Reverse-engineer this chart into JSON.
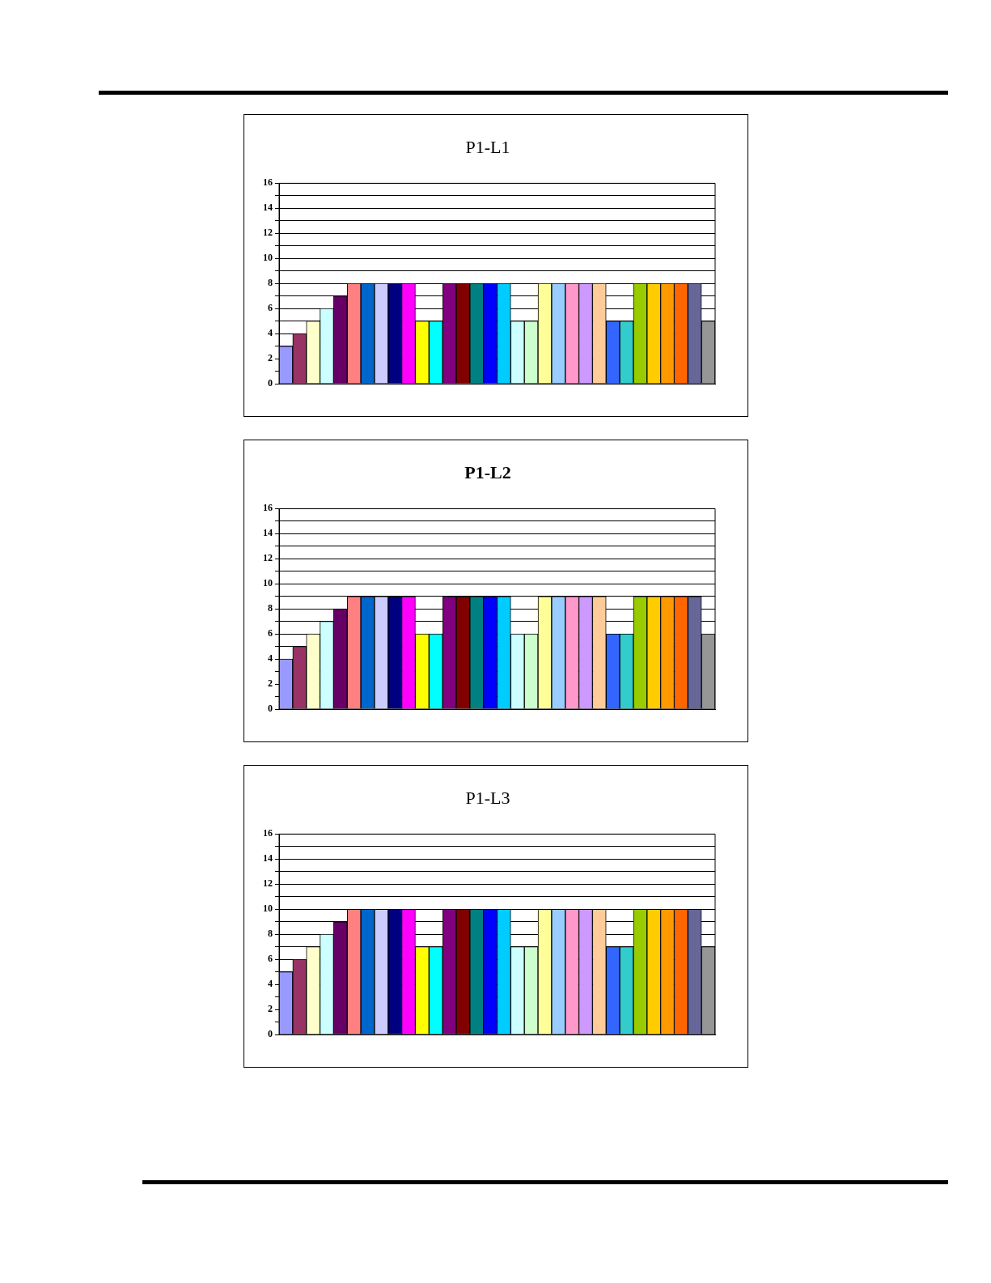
{
  "chart_data": [
    {
      "type": "bar",
      "title": "P1-L1",
      "categories": [
        null,
        null,
        null,
        null,
        null,
        null,
        null,
        null,
        null,
        null,
        null,
        null,
        null,
        null,
        null,
        null,
        null,
        null,
        null,
        null,
        null,
        null,
        null,
        null,
        null,
        null,
        null,
        null,
        null,
        null,
        null,
        null
      ],
      "values": [
        3,
        4,
        5,
        6,
        7,
        8,
        8,
        8,
        8,
        8,
        5,
        5,
        8,
        8,
        8,
        8,
        8,
        5,
        5,
        8,
        8,
        8,
        8,
        8,
        5,
        5,
        8,
        8,
        8,
        8,
        8,
        5
      ],
      "colors": [
        "#9999ff",
        "#993366",
        "#ffffcc",
        "#ccffff",
        "#660066",
        "#ff8080",
        "#0066cc",
        "#ccccff",
        "#000080",
        "#ff00ff",
        "#ffff00",
        "#00ffff",
        "#800080",
        "#800000",
        "#008080",
        "#0000ff",
        "#00ccff",
        "#ccffff",
        "#ccffcc",
        "#ffff99",
        "#99ccff",
        "#ff99cc",
        "#cc99ff",
        "#ffcc99",
        "#3366ff",
        "#33cccc",
        "#99cc00",
        "#ffcc00",
        "#ff9900",
        "#ff6600",
        "#666699",
        "#969696"
      ],
      "ylim": [
        0,
        16
      ],
      "yticks": [
        0,
        {
          "value": 1,
          "label": null
        },
        2,
        {
          "value": 3,
          "label": null
        },
        4,
        {
          "value": 5,
          "label": null
        },
        6,
        {
          "value": 7,
          "label": null
        },
        8,
        {
          "value": 9,
          "label": null
        },
        10,
        {
          "value": 11,
          "label": null
        },
        12,
        {
          "value": 13,
          "label": null
        },
        14,
        {
          "value": 15,
          "label": null
        },
        16
      ],
      "grid": "y",
      "legend": false,
      "tick_labels": "y"
    },
    {
      "type": "bar",
      "title": "P1-L2",
      "categories": [
        null,
        null,
        null,
        null,
        null,
        null,
        null,
        null,
        null,
        null,
        null,
        null,
        null,
        null,
        null,
        null,
        null,
        null,
        null,
        null,
        null,
        null,
        null,
        null,
        null,
        null,
        null,
        null,
        null,
        null,
        null,
        null
      ],
      "values": [
        4,
        5,
        6,
        7,
        8,
        9,
        9,
        9,
        9,
        9,
        6,
        6,
        9,
        9,
        9,
        9,
        9,
        6,
        6,
        9,
        9,
        9,
        9,
        9,
        6,
        6,
        9,
        9,
        9,
        9,
        9,
        6
      ],
      "colors": [
        "#9999ff",
        "#993366",
        "#ffffcc",
        "#ccffff",
        "#660066",
        "#ff8080",
        "#0066cc",
        "#ccccff",
        "#000080",
        "#ff00ff",
        "#ffff00",
        "#00ffff",
        "#800080",
        "#800000",
        "#008080",
        "#0000ff",
        "#00ccff",
        "#ccffff",
        "#ccffcc",
        "#ffff99",
        "#99ccff",
        "#ff99cc",
        "#cc99ff",
        "#ffcc99",
        "#3366ff",
        "#33cccc",
        "#99cc00",
        "#ffcc00",
        "#ff9900",
        "#ff6600",
        "#666699",
        "#969696"
      ],
      "ylim": [
        0,
        16
      ],
      "yticks": [
        0,
        {
          "value": 1,
          "label": null
        },
        2,
        {
          "value": 3,
          "label": null
        },
        4,
        {
          "value": 5,
          "label": null
        },
        6,
        {
          "value": 7,
          "label": null
        },
        8,
        {
          "value": 9,
          "label": null
        },
        10,
        {
          "value": 11,
          "label": null
        },
        12,
        {
          "value": 13,
          "label": null
        },
        14,
        {
          "value": 15,
          "label": null
        },
        16
      ],
      "grid": "y",
      "legend": false,
      "tick_labels": "y"
    },
    {
      "type": "bar",
      "title": "P1-L3",
      "categories": [
        null,
        null,
        null,
        null,
        null,
        null,
        null,
        null,
        null,
        null,
        null,
        null,
        null,
        null,
        null,
        null,
        null,
        null,
        null,
        null,
        null,
        null,
        null,
        null,
        null,
        null,
        null,
        null,
        null,
        null,
        null,
        null
      ],
      "values": [
        5,
        6,
        7,
        8,
        9,
        10,
        10,
        10,
        10,
        10,
        7,
        7,
        10,
        10,
        10,
        10,
        10,
        7,
        7,
        10,
        10,
        10,
        10,
        10,
        7,
        7,
        10,
        10,
        10,
        10,
        10,
        7
      ],
      "colors": [
        "#9999ff",
        "#993366",
        "#ffffcc",
        "#ccffff",
        "#660066",
        "#ff8080",
        "#0066cc",
        "#ccccff",
        "#000080",
        "#ff00ff",
        "#ffff00",
        "#00ffff",
        "#800080",
        "#800000",
        "#008080",
        "#0000ff",
        "#00ccff",
        "#ccffff",
        "#ccffcc",
        "#ffff99",
        "#99ccff",
        "#ff99cc",
        "#cc99ff",
        "#ffcc99",
        "#3366ff",
        "#33cccc",
        "#99cc00",
        "#ffcc00",
        "#ff9900",
        "#ff6600",
        "#666699",
        "#969696"
      ],
      "ylim": [
        0,
        16
      ],
      "yticks": [
        0,
        {
          "value": 1,
          "label": null
        },
        2,
        {
          "value": 3,
          "label": null
        },
        4,
        {
          "value": 5,
          "label": null
        },
        6,
        {
          "value": 7,
          "label": null
        },
        8,
        {
          "value": 9,
          "label": null
        },
        10,
        {
          "value": 11,
          "label": null
        },
        12,
        {
          "value": 13,
          "label": null
        },
        14,
        {
          "value": 15,
          "label": null
        },
        16
      ],
      "grid": "y",
      "legend": false,
      "tick_labels": "y"
    }
  ]
}
